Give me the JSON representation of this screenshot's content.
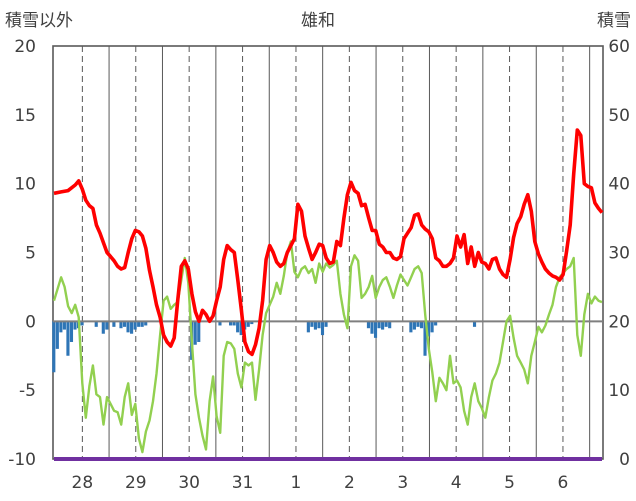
{
  "chart_data": {
    "type": "line",
    "title": "雄和",
    "left_axis_label": "積雪以外",
    "right_axis_label": "積雪",
    "y_left": {
      "min": -10,
      "max": 20,
      "ticks": [
        "20",
        "15",
        "10",
        "5",
        "0",
        "-5",
        "-10"
      ]
    },
    "y_right": {
      "min": 0,
      "max": 60,
      "ticks": [
        "60",
        "50",
        "40",
        "30",
        "20",
        "10",
        "0"
      ]
    },
    "x_day_labels": [
      "28",
      "29",
      "30",
      "31",
      "1",
      "2",
      "3",
      "4",
      "5",
      "6"
    ],
    "grid": "dashed vertical lines at day labels, solid vertical lines between days",
    "colors": {
      "temperature": "#ff0000",
      "green_series": "#92d050",
      "precip_bars": "#2e75b6",
      "snow_depth": "#7030a0",
      "zero_line": "#7f7f7f",
      "grid": "#595959"
    },
    "temperature": [
      [
        0,
        9.3
      ],
      [
        2,
        9.4
      ],
      [
        4,
        9.5
      ],
      [
        6,
        9.9
      ],
      [
        7,
        10.2
      ],
      [
        8,
        9.6
      ],
      [
        9,
        8.8
      ],
      [
        10,
        8.4
      ],
      [
        11,
        8.2
      ],
      [
        12,
        7.0
      ],
      [
        13,
        6.4
      ],
      [
        14,
        5.7
      ],
      [
        15,
        5.0
      ],
      [
        16,
        4.7
      ],
      [
        17,
        4.4
      ],
      [
        18,
        4.0
      ],
      [
        19,
        3.8
      ],
      [
        20,
        3.9
      ],
      [
        21,
        5.0
      ],
      [
        22,
        6.0
      ],
      [
        23,
        6.6
      ],
      [
        24,
        6.5
      ],
      [
        25,
        6.2
      ],
      [
        26,
        5.3
      ],
      [
        27,
        3.7
      ],
      [
        28,
        2.5
      ],
      [
        29,
        1.2
      ],
      [
        30,
        0.3
      ],
      [
        31,
        -1.0
      ],
      [
        32,
        -1.5
      ],
      [
        33,
        -1.8
      ],
      [
        34,
        -1.2
      ],
      [
        35,
        1.5
      ],
      [
        36,
        4.0
      ],
      [
        37,
        4.4
      ],
      [
        38,
        3.8
      ],
      [
        39,
        2.0
      ],
      [
        40,
        0.7
      ],
      [
        41,
        0.0
      ],
      [
        42,
        0.8
      ],
      [
        43,
        0.5
      ],
      [
        44,
        0.0
      ],
      [
        45,
        0.4
      ],
      [
        46,
        1.5
      ],
      [
        47,
        2.5
      ],
      [
        48,
        4.5
      ],
      [
        49,
        5.5
      ],
      [
        50,
        5.2
      ],
      [
        51,
        5.0
      ],
      [
        52,
        3.0
      ],
      [
        53,
        0.8
      ],
      [
        54,
        -1.5
      ],
      [
        55,
        -2.2
      ],
      [
        56,
        -2.4
      ],
      [
        57,
        -1.7
      ],
      [
        58,
        -0.5
      ],
      [
        59,
        1.5
      ],
      [
        60,
        4.5
      ],
      [
        61,
        5.5
      ],
      [
        62,
        5.0
      ],
      [
        63,
        4.3
      ],
      [
        64,
        4.0
      ],
      [
        65,
        4.2
      ],
      [
        66,
        5.0
      ],
      [
        67,
        5.5
      ],
      [
        68,
        6.0
      ],
      [
        69,
        8.5
      ],
      [
        70,
        8.0
      ],
      [
        71,
        6.2
      ],
      [
        72,
        5.3
      ],
      [
        73,
        4.5
      ],
      [
        74,
        5.0
      ],
      [
        75,
        5.6
      ],
      [
        76,
        5.5
      ],
      [
        77,
        4.6
      ],
      [
        78,
        4.2
      ],
      [
        79,
        4.3
      ],
      [
        80,
        5.8
      ],
      [
        81,
        5.5
      ],
      [
        82,
        7.5
      ],
      [
        83,
        9.2
      ],
      [
        84,
        10.1
      ],
      [
        85,
        9.5
      ],
      [
        86,
        9.3
      ],
      [
        87,
        8.4
      ],
      [
        88,
        8.5
      ],
      [
        89,
        7.5
      ],
      [
        90,
        6.6
      ],
      [
        91,
        6.6
      ],
      [
        92,
        5.6
      ],
      [
        93,
        5.4
      ],
      [
        94,
        5.0
      ],
      [
        95,
        5.0
      ],
      [
        96,
        4.6
      ],
      [
        97,
        4.5
      ],
      [
        98,
        4.7
      ],
      [
        99,
        6.0
      ],
      [
        100,
        6.4
      ],
      [
        101,
        6.8
      ],
      [
        102,
        7.7
      ],
      [
        103,
        7.8
      ],
      [
        104,
        7.0
      ],
      [
        105,
        6.7
      ],
      [
        106,
        6.5
      ],
      [
        107,
        6.0
      ],
      [
        108,
        4.6
      ],
      [
        109,
        4.4
      ],
      [
        110,
        4.0
      ],
      [
        111,
        4.0
      ],
      [
        112,
        4.2
      ],
      [
        113,
        4.6
      ],
      [
        114,
        6.2
      ],
      [
        115,
        5.4
      ],
      [
        116,
        6.3
      ],
      [
        117,
        4.2
      ],
      [
        118,
        5.4
      ],
      [
        119,
        4.0
      ],
      [
        120,
        5.0
      ],
      [
        121,
        4.3
      ],
      [
        122,
        4.2
      ],
      [
        123,
        3.8
      ],
      [
        124,
        4.5
      ],
      [
        125,
        4.6
      ],
      [
        126,
        3.8
      ],
      [
        127,
        3.4
      ],
      [
        128,
        3.2
      ],
      [
        129,
        4.5
      ],
      [
        130,
        6.1
      ],
      [
        131,
        7.1
      ],
      [
        132,
        7.6
      ],
      [
        133,
        8.5
      ],
      [
        134,
        9.2
      ],
      [
        135,
        8.0
      ],
      [
        136,
        5.8
      ],
      [
        137,
        4.9
      ],
      [
        138,
        4.3
      ],
      [
        139,
        3.8
      ],
      [
        140,
        3.5
      ],
      [
        141,
        3.3
      ],
      [
        142,
        3.2
      ],
      [
        143,
        3.0
      ],
      [
        144,
        3.4
      ],
      [
        145,
        5.1
      ],
      [
        146,
        7.0
      ],
      [
        147,
        10.7
      ],
      [
        148,
        13.9
      ],
      [
        149,
        13.5
      ],
      [
        150,
        10.0
      ],
      [
        151,
        9.8
      ],
      [
        152,
        9.7
      ],
      [
        153,
        8.6
      ],
      [
        154,
        8.2
      ],
      [
        155,
        7.9
      ]
    ],
    "green_series": [
      [
        0,
        1.5
      ],
      [
        2,
        3.2
      ],
      [
        3,
        2.5
      ],
      [
        4,
        1.1
      ],
      [
        5,
        0.6
      ],
      [
        6,
        1.2
      ],
      [
        7,
        0.3
      ],
      [
        8,
        -4.5
      ],
      [
        9,
        -7.0
      ],
      [
        10,
        -4.7
      ],
      [
        11,
        -3.2
      ],
      [
        12,
        -5.3
      ],
      [
        13,
        -5.5
      ],
      [
        14,
        -7.5
      ],
      [
        15,
        -5.5
      ],
      [
        16,
        -6.0
      ],
      [
        17,
        -6.5
      ],
      [
        18,
        -6.6
      ],
      [
        19,
        -7.5
      ],
      [
        20,
        -5.5
      ],
      [
        21,
        -4.5
      ],
      [
        22,
        -6.8
      ],
      [
        23,
        -6.0
      ],
      [
        24,
        -8.5
      ],
      [
        25,
        -9.5
      ],
      [
        26,
        -8.0
      ],
      [
        27,
        -7.2
      ],
      [
        28,
        -5.8
      ],
      [
        29,
        -3.8
      ],
      [
        30,
        -1.0
      ],
      [
        31,
        1.5
      ],
      [
        32,
        1.8
      ],
      [
        33,
        0.9
      ],
      [
        34,
        1.2
      ],
      [
        35,
        1.4
      ],
      [
        36,
        3.0
      ],
      [
        37,
        4.6
      ],
      [
        38,
        2.8
      ],
      [
        39,
        -1.5
      ],
      [
        40,
        -5.3
      ],
      [
        41,
        -7.0
      ],
      [
        42,
        -8.3
      ],
      [
        43,
        -9.3
      ],
      [
        44,
        -5.8
      ],
      [
        45,
        -4.0
      ],
      [
        46,
        -6.9
      ],
      [
        47,
        -8.1
      ],
      [
        48,
        -2.5
      ],
      [
        49,
        -1.5
      ],
      [
        50,
        -1.6
      ],
      [
        51,
        -2.0
      ],
      [
        52,
        -3.8
      ],
      [
        53,
        -4.8
      ],
      [
        54,
        -3.0
      ],
      [
        55,
        -3.2
      ],
      [
        56,
        -3.0
      ],
      [
        57,
        -5.7
      ],
      [
        58,
        -3.5
      ],
      [
        59,
        -1.0
      ],
      [
        60,
        0.6
      ],
      [
        61,
        1.2
      ],
      [
        62,
        1.8
      ],
      [
        63,
        2.8
      ],
      [
        64,
        2.0
      ],
      [
        65,
        3.3
      ],
      [
        66,
        5.0
      ],
      [
        67,
        5.8
      ],
      [
        68,
        3.6
      ],
      [
        69,
        3.2
      ],
      [
        70,
        3.8
      ],
      [
        71,
        4.0
      ],
      [
        72,
        3.5
      ],
      [
        73,
        3.8
      ],
      [
        74,
        2.8
      ],
      [
        75,
        4.2
      ],
      [
        76,
        3.6
      ],
      [
        77,
        4.2
      ],
      [
        78,
        3.9
      ],
      [
        79,
        4.1
      ],
      [
        80,
        4.4
      ],
      [
        81,
        2.0
      ],
      [
        82,
        0.5
      ],
      [
        83,
        -0.5
      ],
      [
        84,
        4.0
      ],
      [
        85,
        4.8
      ],
      [
        86,
        4.4
      ],
      [
        87,
        1.7
      ],
      [
        88,
        2.0
      ],
      [
        89,
        2.5
      ],
      [
        90,
        3.3
      ],
      [
        91,
        1.7
      ],
      [
        92,
        2.5
      ],
      [
        93,
        3.0
      ],
      [
        94,
        3.2
      ],
      [
        95,
        2.5
      ],
      [
        96,
        1.7
      ],
      [
        97,
        2.6
      ],
      [
        98,
        3.4
      ],
      [
        99,
        3.0
      ],
      [
        100,
        2.6
      ],
      [
        101,
        3.2
      ],
      [
        102,
        3.8
      ],
      [
        103,
        4.0
      ],
      [
        104,
        3.5
      ],
      [
        105,
        0.5
      ],
      [
        106,
        -2.0
      ],
      [
        107,
        -3.7
      ],
      [
        108,
        -5.8
      ],
      [
        109,
        -4.1
      ],
      [
        110,
        -4.5
      ],
      [
        111,
        -5.0
      ],
      [
        112,
        -2.5
      ],
      [
        113,
        -4.5
      ],
      [
        114,
        -4.3
      ],
      [
        115,
        -4.8
      ],
      [
        116,
        -6.5
      ],
      [
        117,
        -7.5
      ],
      [
        118,
        -5.5
      ],
      [
        119,
        -4.5
      ],
      [
        120,
        -5.8
      ],
      [
        121,
        -6.3
      ],
      [
        122,
        -7.0
      ],
      [
        123,
        -5.5
      ],
      [
        124,
        -4.3
      ],
      [
        125,
        -3.8
      ],
      [
        126,
        -3.0
      ],
      [
        127,
        -1.5
      ],
      [
        128,
        0.0
      ],
      [
        129,
        0.4
      ],
      [
        130,
        -1.2
      ],
      [
        131,
        -2.5
      ],
      [
        132,
        -3.0
      ],
      [
        133,
        -3.5
      ],
      [
        134,
        -4.5
      ],
      [
        135,
        -2.5
      ],
      [
        136,
        -1.5
      ],
      [
        137,
        -0.4
      ],
      [
        138,
        -0.8
      ],
      [
        139,
        -0.3
      ],
      [
        140,
        0.5
      ],
      [
        141,
        1.2
      ],
      [
        142,
        2.5
      ],
      [
        143,
        3.2
      ],
      [
        144,
        3.5
      ],
      [
        145,
        3.8
      ],
      [
        146,
        4.0
      ],
      [
        147,
        4.6
      ],
      [
        148,
        -1.0
      ],
      [
        149,
        -2.5
      ],
      [
        150,
        0.5
      ],
      [
        151,
        2.0
      ],
      [
        152,
        1.3
      ],
      [
        153,
        1.8
      ],
      [
        154,
        1.5
      ],
      [
        155,
        1.4
      ]
    ],
    "precipitation_bars": [
      [
        0,
        3.7
      ],
      [
        1,
        2.0
      ],
      [
        2,
        0.8
      ],
      [
        3,
        0.6
      ],
      [
        4,
        2.5
      ],
      [
        5,
        1.5
      ],
      [
        6,
        0.6
      ],
      [
        7,
        0.5
      ],
      [
        8,
        0.3
      ],
      [
        12,
        0.4
      ],
      [
        14,
        0.9
      ],
      [
        15,
        0.6
      ],
      [
        17,
        0.4
      ],
      [
        19,
        0.5
      ],
      [
        20,
        0.4
      ],
      [
        21,
        0.8
      ],
      [
        22,
        0.9
      ],
      [
        23,
        0.6
      ],
      [
        24,
        0.4
      ],
      [
        25,
        0.4
      ],
      [
        26,
        0.3
      ],
      [
        39,
        2.8
      ],
      [
        40,
        1.7
      ],
      [
        41,
        1.5
      ],
      [
        47,
        0.3
      ],
      [
        50,
        0.3
      ],
      [
        51,
        0.3
      ],
      [
        52,
        0.8
      ],
      [
        53,
        1.0
      ],
      [
        54,
        0.6
      ],
      [
        55,
        0.4
      ],
      [
        56,
        0.2
      ],
      [
        72,
        0.8
      ],
      [
        73,
        0.4
      ],
      [
        74,
        0.6
      ],
      [
        75,
        0.5
      ],
      [
        76,
        1.0
      ],
      [
        77,
        0.4
      ],
      [
        89,
        0.5
      ],
      [
        90,
        0.9
      ],
      [
        91,
        1.2
      ],
      [
        92,
        0.5
      ],
      [
        93,
        0.6
      ],
      [
        94,
        0.4
      ],
      [
        95,
        0.5
      ],
      [
        101,
        0.8
      ],
      [
        102,
        0.6
      ],
      [
        103,
        0.4
      ],
      [
        104,
        0.5
      ],
      [
        105,
        2.5
      ],
      [
        106,
        1.1
      ],
      [
        107,
        0.8
      ],
      [
        108,
        0.3
      ],
      [
        119,
        0.4
      ]
    ],
    "snow_depth": [
      [
        0,
        0
      ],
      [
        155,
        0
      ]
    ]
  }
}
